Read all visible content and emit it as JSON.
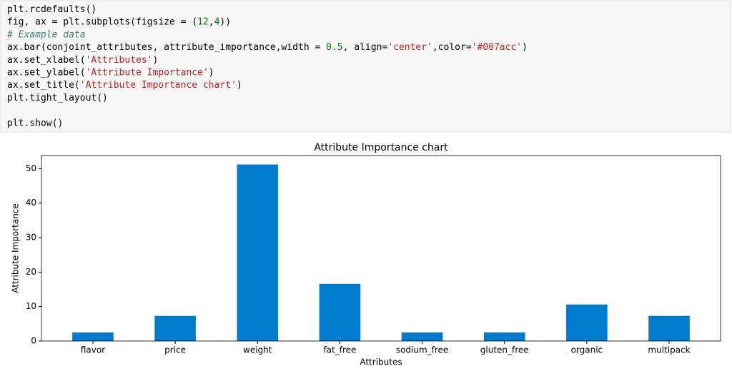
{
  "code": {
    "lines": [
      [
        {
          "text": "plt.rcdefaults()",
          "color": "#000000"
        }
      ],
      [
        {
          "text": "fig, ax = plt.subplots(figsize = (",
          "color": "#000000"
        },
        {
          "text": "12",
          "color": "#008000"
        },
        {
          "text": ",",
          "color": "#000000"
        },
        {
          "text": "4",
          "color": "#008000"
        },
        {
          "text": "))",
          "color": "#000000"
        }
      ],
      [
        {
          "text": "# Example data",
          "color": "#408080",
          "style": "italic"
        }
      ],
      [
        {
          "text": "ax.bar(conjoint_attributes, attribute_importance,width = ",
          "color": "#000000"
        },
        {
          "text": "0.5",
          "color": "#008000"
        },
        {
          "text": ", align=",
          "color": "#000000"
        },
        {
          "text": "'center'",
          "color": "#ba2121"
        },
        {
          "text": ",color=",
          "color": "#000000"
        },
        {
          "text": "'#007acc'",
          "color": "#ba2121"
        },
        {
          "text": ")",
          "color": "#000000"
        }
      ],
      [
        {
          "text": "ax.set_xlabel(",
          "color": "#000000"
        },
        {
          "text": "'Attributes'",
          "color": "#ba2121"
        },
        {
          "text": ")",
          "color": "#000000"
        }
      ],
      [
        {
          "text": "ax.set_ylabel(",
          "color": "#000000"
        },
        {
          "text": "'Attribute Importance'",
          "color": "#ba2121"
        },
        {
          "text": ")",
          "color": "#000000"
        }
      ],
      [
        {
          "text": "ax.set_title(",
          "color": "#000000"
        },
        {
          "text": "'Attribute Importance chart'",
          "color": "#ba2121"
        },
        {
          "text": ")",
          "color": "#000000"
        }
      ],
      [
        {
          "text": "plt.tight_layout()",
          "color": "#000000"
        }
      ],
      [],
      [
        {
          "text": "plt.show()",
          "color": "#000000"
        }
      ]
    ]
  },
  "chart_data": {
    "type": "bar",
    "title": "Attribute Importance chart",
    "x_label": "Attributes",
    "y_label": "Attribute Importance",
    "categories": [
      "flavor",
      "price",
      "weight",
      "fat_free",
      "sodium_free",
      "gluten_free",
      "organic",
      "multipack"
    ],
    "values": [
      2.5,
      7.3,
      51.2,
      16.6,
      2.5,
      2.5,
      10.6,
      7.3
    ],
    "color": "#007acc",
    "ylim": [
      0,
      53.8
    ],
    "yticks": [
      0,
      10,
      20,
      30,
      40,
      50
    ],
    "grid": false
  }
}
